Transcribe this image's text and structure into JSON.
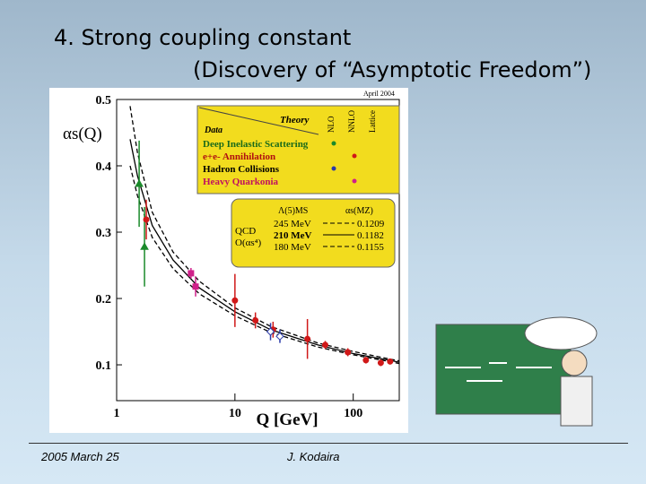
{
  "slide": {
    "title_line1": "4. Strong coupling constant",
    "title_line2": "(Discovery of  “Asymptotic Freedom”)",
    "date": "2005 March 25",
    "author": "J. Kodaira"
  },
  "chart_data": {
    "type": "scatter",
    "stamp": "April 2004",
    "x_label": "Q [GeV]",
    "y_label": "αs(Q)",
    "log_x": true,
    "xlim": [
      1,
      245
    ],
    "ylim": [
      0.046,
      0.5
    ],
    "xticks": [
      1,
      10,
      100
    ],
    "yticks": [
      0.1,
      0.2,
      0.3,
      0.4,
      0.5
    ],
    "legend_header": {
      "theory": "Theory",
      "data": "Data",
      "cols": [
        "NLO",
        "NNLO",
        "Lattice"
      ]
    },
    "series": [
      {
        "name": "Deep Inelastic Scattering",
        "color": "#1a8a2a",
        "marker": "triangle",
        "x": [
          1.55,
          1.72
        ],
        "values": [
          0.373,
          0.278
        ],
        "errors": [
          0.065,
          0.06
        ]
      },
      {
        "name": "e+e- Annihilation",
        "color": "#d01818",
        "marker": "circle",
        "x": [
          1.78,
          10,
          14.9,
          21,
          41,
          58,
          90,
          128,
          171,
          205
        ],
        "values": [
          0.319,
          0.197,
          0.167,
          0.153,
          0.139,
          0.13,
          0.119,
          0.107,
          0.103,
          0.105
        ],
        "errors": [
          0.03,
          0.04,
          0.012,
          0.012,
          0.03,
          0.006,
          0.006,
          0.005,
          0.005,
          0.004
        ]
      },
      {
        "name": "Hadron Collisions",
        "color": "#2a3aa8",
        "marker": "diamond",
        "x": [
          20,
          24
        ],
        "values": [
          0.15,
          0.143
        ],
        "errors": [
          0.013,
          0.01
        ]
      },
      {
        "name": "Heavy Quarkonia",
        "color": "#d0208a",
        "marker": "square",
        "x": [
          4.25,
          4.65
        ],
        "values": [
          0.238,
          0.218
        ],
        "errors": [
          0.008,
          0.015
        ]
      }
    ],
    "theory_box": {
      "head_lambda": "Λ(5)MS",
      "head_alpha": "αs(MZ)",
      "qcd": "QCD",
      "order": "O(αs⁴)"
    },
    "curves": [
      {
        "lambda": "245 MeV",
        "alpha": "0.1209",
        "dash": "5,3",
        "x": [
          1.3,
          1.5,
          2,
          3,
          5,
          10,
          20,
          50,
          100,
          200,
          245
        ],
        "values": [
          0.49,
          0.42,
          0.33,
          0.27,
          0.226,
          0.186,
          0.158,
          0.133,
          0.12,
          0.109,
          0.106
        ]
      },
      {
        "lambda": "210 MeV",
        "alpha": "0.1182",
        "dash": "",
        "x": [
          1.3,
          1.5,
          2,
          3,
          5,
          10,
          20,
          50,
          100,
          200,
          245
        ],
        "values": [
          0.44,
          0.385,
          0.31,
          0.258,
          0.216,
          0.18,
          0.153,
          0.13,
          0.117,
          0.107,
          0.104
        ]
      },
      {
        "lambda": "180 MeV",
        "alpha": "0.1155",
        "dash": "5,3",
        "x": [
          1.3,
          1.5,
          2,
          3,
          5,
          10,
          20,
          50,
          100,
          200,
          245
        ],
        "values": [
          0.4,
          0.355,
          0.292,
          0.245,
          0.207,
          0.174,
          0.149,
          0.127,
          0.115,
          0.105,
          0.102
        ]
      }
    ]
  }
}
